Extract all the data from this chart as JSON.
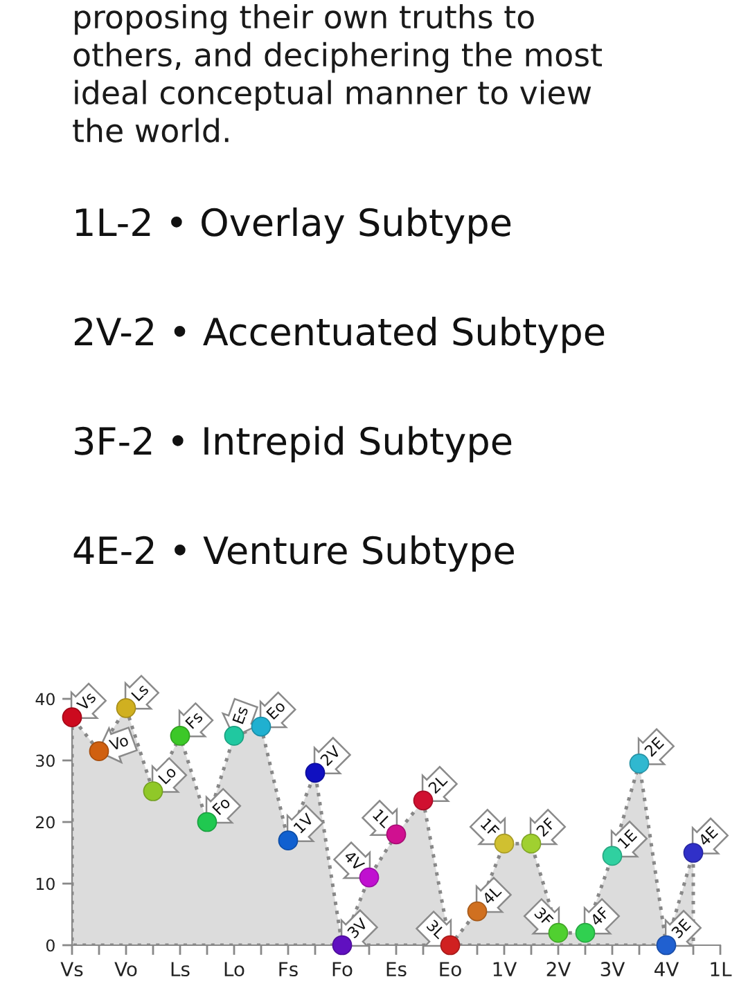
{
  "chart_data": {
    "type": "scatter",
    "annotations": [
      "proposing their own truths to\nothers, and deciphering the most\nideal conceptual manner to view\nthe world.",
      "1L-2 • Overlay Subtype",
      "2V-2 • Accentuated Subtype",
      "3F-2 • Intrepid Subtype",
      "4E-2 • Venture Subtype"
    ],
    "categories": [
      "Vs",
      null,
      "Vo",
      null,
      "Ls",
      null,
      "Lo",
      null,
      "Fs",
      null,
      "Fo",
      null,
      "Es",
      null,
      "Eo",
      null,
      "1V",
      null,
      "2V",
      null,
      "3V",
      null,
      "4V",
      null,
      "1L"
    ],
    "ylim": [
      0,
      40
    ],
    "yticks": [
      0,
      10,
      20,
      30,
      40
    ],
    "series": [
      {
        "type": "area",
        "color": "#dcdcdc",
        "line_style": "dotted",
        "values": [
          37,
          31.5,
          38.5,
          25,
          34,
          20,
          34,
          35.5,
          17,
          28,
          0,
          11,
          18,
          23.5,
          0,
          5.5,
          16.5,
          16.5,
          2,
          2,
          14.5,
          29.5,
          0,
          15,
          null
        ]
      },
      {
        "name": "Vs",
        "color": "#cc0a1e",
        "marker": "circle",
        "values": [
          37,
          null,
          null,
          null,
          null,
          null,
          null,
          null,
          null,
          null,
          null,
          null,
          null,
          null,
          null,
          null,
          null,
          null,
          null,
          null,
          null,
          null,
          null,
          null,
          null
        ]
      },
      {
        "name": "Vo",
        "color": "#d06010",
        "marker": "circle",
        "values": [
          null,
          31.5,
          null,
          null,
          null,
          null,
          null,
          null,
          null,
          null,
          null,
          null,
          null,
          null,
          null,
          null,
          null,
          null,
          null,
          null,
          null,
          null,
          null,
          null,
          null
        ]
      },
      {
        "name": "Ls",
        "color": "#d0b020",
        "marker": "circle",
        "values": [
          null,
          null,
          38.5,
          null,
          null,
          null,
          null,
          null,
          null,
          null,
          null,
          null,
          null,
          null,
          null,
          null,
          null,
          null,
          null,
          null,
          null,
          null,
          null,
          null,
          null
        ]
      },
      {
        "name": "Lo",
        "color": "#90c828",
        "marker": "circle",
        "values": [
          null,
          null,
          null,
          25,
          null,
          null,
          null,
          null,
          null,
          null,
          null,
          null,
          null,
          null,
          null,
          null,
          null,
          null,
          null,
          null,
          null,
          null,
          null,
          null,
          null
        ]
      },
      {
        "name": "Fs",
        "color": "#3cc828",
        "marker": "circle",
        "values": [
          null,
          null,
          null,
          null,
          34,
          null,
          null,
          null,
          null,
          null,
          null,
          null,
          null,
          null,
          null,
          null,
          null,
          null,
          null,
          null,
          null,
          null,
          null,
          null,
          null
        ]
      },
      {
        "name": "Fo",
        "color": "#20c850",
        "marker": "circle",
        "values": [
          null,
          null,
          null,
          null,
          null,
          20,
          null,
          null,
          null,
          null,
          null,
          null,
          null,
          null,
          null,
          null,
          null,
          null,
          null,
          null,
          null,
          null,
          null,
          null,
          null
        ]
      },
      {
        "name": "Es",
        "color": "#20c8a0",
        "marker": "circle",
        "values": [
          null,
          null,
          null,
          null,
          null,
          null,
          34,
          null,
          null,
          null,
          null,
          null,
          null,
          null,
          null,
          null,
          null,
          null,
          null,
          null,
          null,
          null,
          null,
          null,
          null
        ]
      },
      {
        "name": "Eo",
        "color": "#20b0d0",
        "marker": "circle",
        "values": [
          null,
          null,
          null,
          null,
          null,
          null,
          null,
          35.5,
          null,
          null,
          null,
          null,
          null,
          null,
          null,
          null,
          null,
          null,
          null,
          null,
          null,
          null,
          null,
          null,
          null
        ]
      },
      {
        "name": "1V",
        "color": "#1060d0",
        "marker": "circle",
        "values": [
          null,
          null,
          null,
          null,
          null,
          null,
          null,
          null,
          17,
          null,
          null,
          null,
          null,
          null,
          null,
          null,
          null,
          null,
          null,
          null,
          null,
          null,
          null,
          null,
          null
        ]
      },
      {
        "name": "2V",
        "color": "#1010c0",
        "marker": "circle",
        "values": [
          null,
          null,
          null,
          null,
          null,
          null,
          null,
          null,
          null,
          28,
          null,
          null,
          null,
          null,
          null,
          null,
          null,
          null,
          null,
          null,
          null,
          null,
          null,
          null,
          null
        ]
      },
      {
        "name": "3V",
        "color": "#6010c0",
        "marker": "circle",
        "values": [
          null,
          null,
          null,
          null,
          null,
          null,
          null,
          null,
          null,
          null,
          0,
          null,
          null,
          null,
          null,
          null,
          null,
          null,
          null,
          null,
          null,
          null,
          null,
          null,
          null
        ]
      },
      {
        "name": "4V",
        "color": "#c010d0",
        "marker": "circle",
        "values": [
          null,
          null,
          null,
          null,
          null,
          null,
          null,
          null,
          null,
          null,
          null,
          11,
          null,
          null,
          null,
          null,
          null,
          null,
          null,
          null,
          null,
          null,
          null,
          null,
          null
        ]
      },
      {
        "name": "1L",
        "color": "#d01090",
        "marker": "circle",
        "values": [
          null,
          null,
          null,
          null,
          null,
          null,
          null,
          null,
          null,
          null,
          null,
          null,
          18,
          null,
          null,
          null,
          null,
          null,
          null,
          null,
          null,
          null,
          null,
          null,
          null
        ]
      },
      {
        "name": "2L",
        "color": "#d01030",
        "marker": "circle",
        "values": [
          null,
          null,
          null,
          null,
          null,
          null,
          null,
          null,
          null,
          null,
          null,
          null,
          null,
          23.5,
          null,
          null,
          null,
          null,
          null,
          null,
          null,
          null,
          null,
          null,
          null
        ]
      },
      {
        "name": "3L",
        "color": "#d02020",
        "marker": "circle",
        "values": [
          null,
          null,
          null,
          null,
          null,
          null,
          null,
          null,
          null,
          null,
          null,
          null,
          null,
          null,
          0,
          null,
          null,
          null,
          null,
          null,
          null,
          null,
          null,
          null,
          null
        ]
      },
      {
        "name": "4L",
        "color": "#d07020",
        "marker": "circle",
        "values": [
          null,
          null,
          null,
          null,
          null,
          null,
          null,
          null,
          null,
          null,
          null,
          null,
          null,
          null,
          null,
          5.5,
          null,
          null,
          null,
          null,
          null,
          null,
          null,
          null,
          null
        ]
      },
      {
        "name": "1F",
        "color": "#d0c030",
        "marker": "circle",
        "values": [
          null,
          null,
          null,
          null,
          null,
          null,
          null,
          null,
          null,
          null,
          null,
          null,
          null,
          null,
          null,
          null,
          16.5,
          null,
          null,
          null,
          null,
          null,
          null,
          null,
          null
        ]
      },
      {
        "name": "2F",
        "color": "#a0d030",
        "marker": "circle",
        "values": [
          null,
          null,
          null,
          null,
          null,
          null,
          null,
          null,
          null,
          null,
          null,
          null,
          null,
          null,
          null,
          null,
          null,
          16.5,
          null,
          null,
          null,
          null,
          null,
          null,
          null
        ]
      },
      {
        "name": "3F",
        "color": "#50d030",
        "marker": "circle",
        "values": [
          null,
          null,
          null,
          null,
          null,
          null,
          null,
          null,
          null,
          null,
          null,
          null,
          null,
          null,
          null,
          null,
          null,
          null,
          2,
          null,
          null,
          null,
          null,
          null,
          null
        ]
      },
      {
        "name": "4F",
        "color": "#30d050",
        "marker": "circle",
        "values": [
          null,
          null,
          null,
          null,
          null,
          null,
          null,
          null,
          null,
          null,
          null,
          null,
          null,
          null,
          null,
          null,
          null,
          null,
          null,
          2,
          null,
          null,
          null,
          null,
          null
        ]
      },
      {
        "name": "1E",
        "color": "#30d0a0",
        "marker": "circle",
        "values": [
          null,
          null,
          null,
          null,
          null,
          null,
          null,
          null,
          null,
          null,
          null,
          null,
          null,
          null,
          null,
          null,
          null,
          null,
          null,
          null,
          14.5,
          null,
          null,
          null,
          null
        ]
      },
      {
        "name": "2E",
        "color": "#30b8d0",
        "marker": "circle",
        "values": [
          null,
          null,
          null,
          null,
          null,
          null,
          null,
          null,
          null,
          null,
          null,
          null,
          null,
          null,
          null,
          null,
          null,
          null,
          null,
          null,
          null,
          29.5,
          null,
          null,
          null
        ]
      },
      {
        "name": "3E",
        "color": "#2060d0",
        "marker": "circle",
        "values": [
          null,
          null,
          null,
          null,
          null,
          null,
          null,
          null,
          null,
          null,
          null,
          null,
          null,
          null,
          null,
          null,
          null,
          null,
          null,
          null,
          null,
          null,
          0,
          null,
          null
        ]
      },
      {
        "name": "4E",
        "color": "#3030c8",
        "marker": "circle",
        "values": [
          null,
          null,
          null,
          null,
          null,
          null,
          null,
          null,
          null,
          null,
          null,
          null,
          null,
          null,
          null,
          null,
          null,
          null,
          null,
          null,
          null,
          null,
          null,
          15,
          null
        ]
      }
    ]
  }
}
